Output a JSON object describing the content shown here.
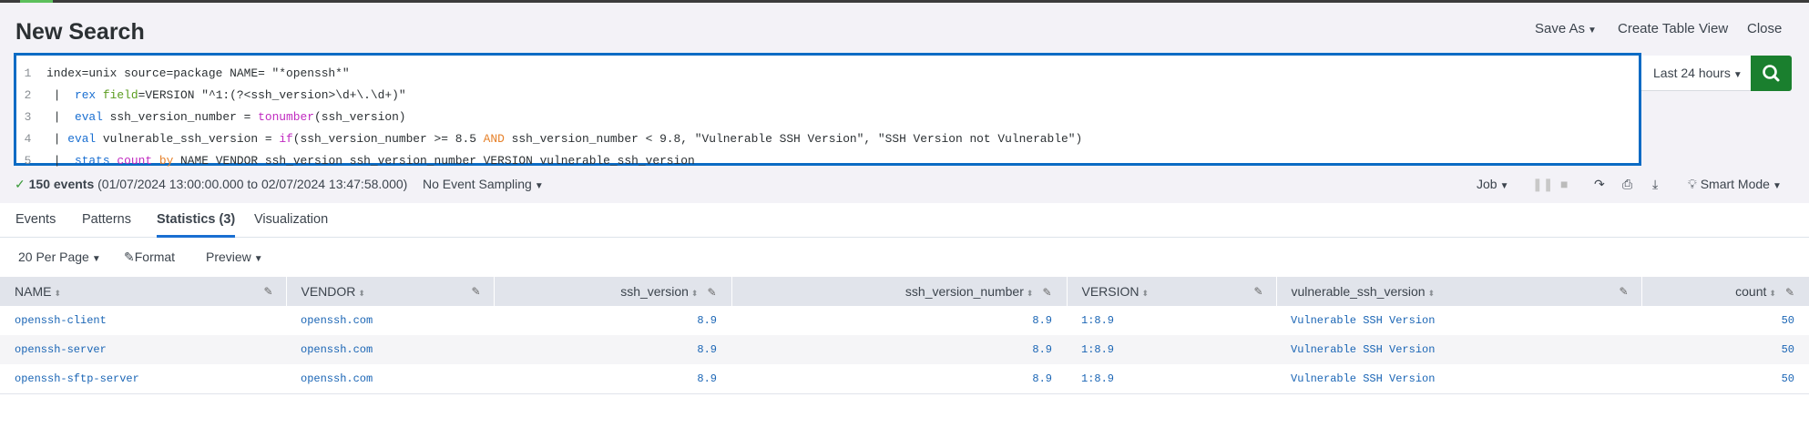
{
  "header": {
    "title": "New Search",
    "save_as": "Save As",
    "create_table_view": "Create Table View",
    "close": "Close"
  },
  "search": {
    "lines": [
      {
        "n": "1",
        "parts": [
          {
            "t": "index=unix source=package NAME= \"*openssh*\"",
            "c": ""
          }
        ]
      },
      {
        "n": "2",
        "parts": [
          {
            "t": " |  ",
            "c": ""
          },
          {
            "t": "rex",
            "c": "cmd"
          },
          {
            "t": " ",
            "c": ""
          },
          {
            "t": "field",
            "c": "arg"
          },
          {
            "t": "=VERSION \"^1:(?<ssh_version>\\d+\\.\\d+)\"",
            "c": ""
          }
        ]
      },
      {
        "n": "3",
        "parts": [
          {
            "t": " |  ",
            "c": ""
          },
          {
            "t": "eval",
            "c": "cmd"
          },
          {
            "t": " ssh_version_number = ",
            "c": ""
          },
          {
            "t": "tonumber",
            "c": "fn"
          },
          {
            "t": "(ssh_version)",
            "c": ""
          }
        ]
      },
      {
        "n": "4",
        "parts": [
          {
            "t": " | ",
            "c": ""
          },
          {
            "t": "eval",
            "c": "cmd"
          },
          {
            "t": " vulnerable_ssh_version = ",
            "c": ""
          },
          {
            "t": "if",
            "c": "fn"
          },
          {
            "t": "(ssh_version_number >= 8.5 ",
            "c": ""
          },
          {
            "t": "AND",
            "c": "kw"
          },
          {
            "t": " ssh_version_number < 9.8, \"Vulnerable SSH Version\", \"SSH Version not Vulnerable\")",
            "c": ""
          }
        ]
      },
      {
        "n": "5",
        "parts": [
          {
            "t": " |  ",
            "c": ""
          },
          {
            "t": "stats",
            "c": "cmd"
          },
          {
            "t": " ",
            "c": ""
          },
          {
            "t": "count",
            "c": "fn"
          },
          {
            "t": " ",
            "c": ""
          },
          {
            "t": "by",
            "c": "kw"
          },
          {
            "t": " NAME VENDOR ssh_version ssh_version_number VERSION vulnerable_ssh_version",
            "c": ""
          }
        ]
      }
    ],
    "time_range": "Last 24 hours",
    "search_icon": "search-icon"
  },
  "status": {
    "check": "✓",
    "count": "150 events",
    "range": "(01/07/2024 13:00:00.000 to 02/07/2024 13:47:58.000)",
    "sampling": "No Event Sampling"
  },
  "job": {
    "job": "Job",
    "mode": "Smart Mode"
  },
  "tabs": [
    {
      "label": "Events"
    },
    {
      "label": "Patterns"
    },
    {
      "label": "Statistics (3)",
      "active": true
    },
    {
      "label": "Visualization"
    }
  ],
  "toolbar": {
    "per_page": "20 Per Page",
    "format": "Format",
    "preview": "Preview"
  },
  "table": {
    "columns": [
      "NAME",
      "VENDOR",
      "ssh_version",
      "ssh_version_number",
      "VERSION",
      "vulnerable_ssh_version",
      "count"
    ],
    "rows": [
      [
        "openssh-client",
        "openssh.com",
        "8.9",
        "8.9",
        "1:8.9",
        "Vulnerable SSH Version",
        "50"
      ],
      [
        "openssh-server",
        "openssh.com",
        "8.9",
        "8.9",
        "1:8.9",
        "Vulnerable SSH Version",
        "50"
      ],
      [
        "openssh-sftp-server",
        "openssh.com",
        "8.9",
        "8.9",
        "1:8.9",
        "Vulnerable SSH Version",
        "50"
      ]
    ]
  },
  "colors": {
    "accent": "#0b6bc4",
    "search_button": "#1a7f2e",
    "link": "#1a65b5"
  }
}
